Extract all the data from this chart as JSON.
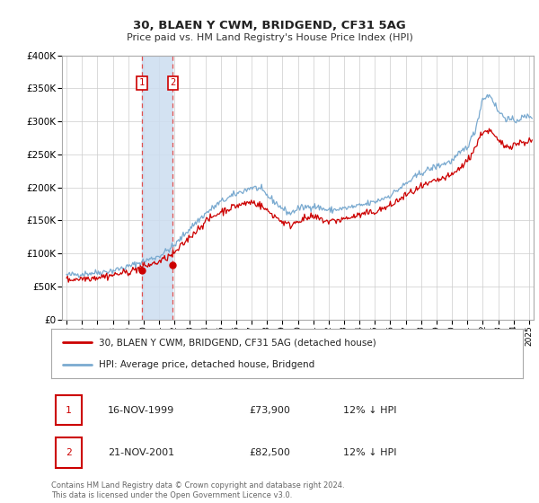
{
  "title": "30, BLAEN Y CWM, BRIDGEND, CF31 5AG",
  "subtitle": "Price paid vs. HM Land Registry's House Price Index (HPI)",
  "ylim": [
    0,
    400000
  ],
  "yticks": [
    0,
    50000,
    100000,
    150000,
    200000,
    250000,
    300000,
    350000,
    400000
  ],
  "ytick_labels": [
    "£0",
    "£50K",
    "£100K",
    "£150K",
    "£200K",
    "£250K",
    "£300K",
    "£350K",
    "£400K"
  ],
  "xlim_start": 1994.7,
  "xlim_end": 2025.3,
  "xtick_years": [
    1995,
    1996,
    1997,
    1998,
    1999,
    2000,
    2001,
    2002,
    2003,
    2004,
    2005,
    2006,
    2007,
    2008,
    2009,
    2010,
    2011,
    2012,
    2013,
    2014,
    2015,
    2016,
    2017,
    2018,
    2019,
    2020,
    2021,
    2022,
    2023,
    2024,
    2025
  ],
  "sale1_x": 1999.88,
  "sale1_y": 73900,
  "sale2_x": 2001.89,
  "sale2_y": 82500,
  "sale1_label": "1",
  "sale2_label": "2",
  "vline1_x": 1999.88,
  "vline2_x": 2001.89,
  "shade_color": "#ccddf0",
  "vline_color": "#e05050",
  "red_line_color": "#cc0000",
  "blue_line_color": "#7aaad0",
  "legend1_label": "30, BLAEN Y CWM, BRIDGEND, CF31 5AG (detached house)",
  "legend2_label": "HPI: Average price, detached house, Bridgend",
  "table_row1": [
    "1",
    "16-NOV-1999",
    "£73,900",
    "12% ↓ HPI"
  ],
  "table_row2": [
    "2",
    "21-NOV-2001",
    "£82,500",
    "12% ↓ HPI"
  ],
  "footer_text": "Contains HM Land Registry data © Crown copyright and database right 2024.\nThis data is licensed under the Open Government Licence v3.0.",
  "bg_color": "#ffffff",
  "grid_color": "#cccccc"
}
